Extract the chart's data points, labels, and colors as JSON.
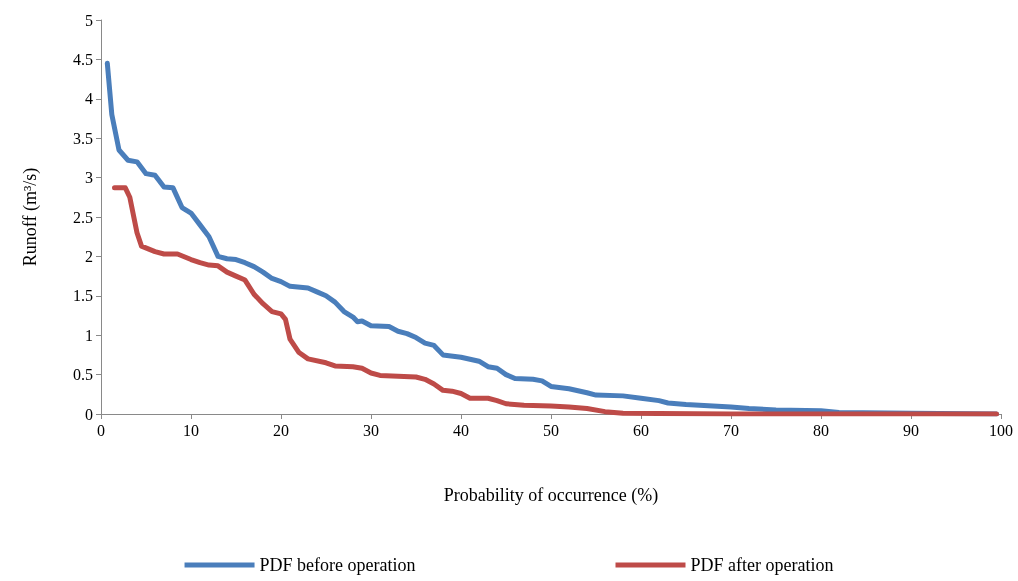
{
  "chart_data": {
    "type": "line",
    "xlabel": "Probability of occurrence (%)",
    "ylabel": "Runoff (m³/s)",
    "xlim": [
      0,
      100
    ],
    "xticks": [
      0,
      10,
      20,
      30,
      40,
      50,
      60,
      70,
      80,
      90,
      100
    ],
    "ylim": [
      0,
      5
    ],
    "yticks": [
      0,
      0.5,
      1,
      1.5,
      2,
      2.5,
      3,
      3.5,
      4,
      4.5,
      5
    ],
    "grid": false,
    "legend": "bottom",
    "marker": "none",
    "line_style": "solid",
    "series": [
      {
        "name": "PDF before operation",
        "color": "#4a7ebb",
        "x": [
          0.7,
          1.2,
          2,
          3,
          4,
          5,
          6,
          7,
          8,
          9,
          10,
          11,
          12,
          13,
          14,
          15,
          16,
          17,
          18,
          19,
          20,
          21,
          23,
          24,
          25,
          26,
          27,
          28,
          28.5,
          29,
          30,
          32,
          33,
          34,
          35,
          36,
          37,
          38,
          40,
          42,
          43,
          44,
          45,
          46,
          48,
          49,
          50,
          52,
          54,
          55,
          58,
          60,
          62,
          63,
          65,
          68,
          70,
          72,
          75,
          80,
          82,
          90,
          99.5
        ],
        "values": [
          4.45,
          3.8,
          3.35,
          3.22,
          3.2,
          3.05,
          3.03,
          2.88,
          2.87,
          2.62,
          2.55,
          2.4,
          2.25,
          2.0,
          1.97,
          1.96,
          1.92,
          1.87,
          1.8,
          1.72,
          1.68,
          1.62,
          1.6,
          1.55,
          1.5,
          1.42,
          1.3,
          1.23,
          1.17,
          1.18,
          1.12,
          1.11,
          1.05,
          1.02,
          0.97,
          0.9,
          0.87,
          0.75,
          0.72,
          0.67,
          0.6,
          0.58,
          0.5,
          0.45,
          0.44,
          0.42,
          0.35,
          0.32,
          0.27,
          0.24,
          0.23,
          0.2,
          0.17,
          0.14,
          0.12,
          0.1,
          0.09,
          0.07,
          0.05,
          0.04,
          0.02,
          0.01,
          0.0
        ]
      },
      {
        "name": "PDF after operation",
        "color": "#be4b48",
        "x": [
          1.5,
          2.7,
          3.2,
          4,
          4.5,
          6,
          7,
          8.5,
          10,
          11,
          12,
          13,
          14,
          15,
          16,
          17,
          18,
          19,
          20,
          20.5,
          21,
          22,
          23,
          25,
          26,
          28,
          29,
          30,
          31,
          35,
          36,
          37,
          38,
          39,
          40,
          41,
          43,
          44,
          45,
          47,
          50,
          52,
          54,
          56,
          58,
          70,
          99.5
        ],
        "values": [
          2.87,
          2.87,
          2.75,
          2.3,
          2.13,
          2.06,
          2.03,
          2.03,
          1.96,
          1.92,
          1.89,
          1.88,
          1.8,
          1.75,
          1.7,
          1.52,
          1.4,
          1.3,
          1.27,
          1.2,
          0.95,
          0.78,
          0.7,
          0.65,
          0.61,
          0.6,
          0.58,
          0.52,
          0.49,
          0.47,
          0.44,
          0.38,
          0.3,
          0.29,
          0.26,
          0.2,
          0.2,
          0.17,
          0.13,
          0.11,
          0.1,
          0.09,
          0.07,
          0.03,
          0.01,
          0.0,
          0.0
        ]
      }
    ]
  }
}
